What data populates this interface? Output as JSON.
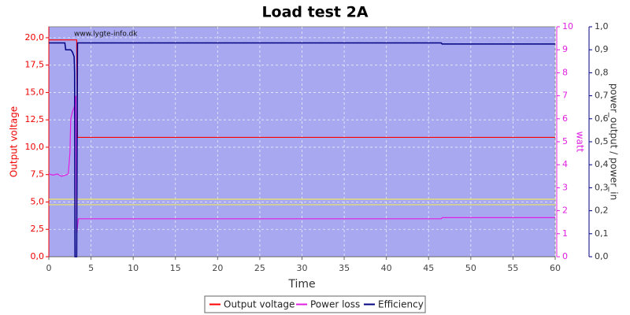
{
  "chart_data": {
    "type": "line",
    "title": "Load test 2A",
    "xlabel": "Time",
    "ylabel": "Output voltage",
    "y2label": "watt",
    "y3label": "power_output / power_in",
    "watermark": "www.lygte-info.dk",
    "xlim": [
      0,
      60
    ],
    "xticks": [
      0,
      5,
      10,
      15,
      20,
      25,
      30,
      35,
      40,
      45,
      50,
      55,
      60
    ],
    "ylim": [
      0,
      21
    ],
    "yticks": [
      {
        "value": 0,
        "label": "0,0"
      },
      {
        "value": 2.5,
        "label": "2,5"
      },
      {
        "value": 5,
        "label": "5,0"
      },
      {
        "value": 7.5,
        "label": "7,5"
      },
      {
        "value": 10,
        "label": "10,0"
      },
      {
        "value": 12.5,
        "label": "12,5"
      },
      {
        "value": 15,
        "label": "15,0"
      },
      {
        "value": 17.5,
        "label": "17,5"
      },
      {
        "value": 20,
        "label": "20,0"
      }
    ],
    "y2lim": [
      0,
      10
    ],
    "y2ticks": [
      0,
      1,
      2,
      3,
      4,
      5,
      6,
      7,
      8,
      9,
      10
    ],
    "y3lim": [
      0,
      1
    ],
    "y3ticks": [
      {
        "value": 0,
        "label": "0,0"
      },
      {
        "value": 0.1,
        "label": "0,1"
      },
      {
        "value": 0.2,
        "label": "0,2"
      },
      {
        "value": 0.3,
        "label": "0,3"
      },
      {
        "value": 0.4,
        "label": "0,4"
      },
      {
        "value": 0.5,
        "label": "0,5"
      },
      {
        "value": 0.6,
        "label": "0,6"
      },
      {
        "value": 0.7,
        "label": "0,7"
      },
      {
        "value": 0.8,
        "label": "0,8"
      },
      {
        "value": 0.9,
        "label": "0,9"
      },
      {
        "value": 1,
        "label": "1,0"
      }
    ],
    "grid": true,
    "hlines": {
      "color": "#e8e860",
      "values": [
        5.25,
        4.75
      ]
    },
    "series": [
      {
        "name": "Output voltage",
        "color": "#ff0000",
        "axis": "y",
        "x": [
          0,
          3.3,
          3.4,
          60
        ],
        "values": [
          19.8,
          19.8,
          10.9,
          10.9
        ]
      },
      {
        "name": "Power loss",
        "color": "#e020e0",
        "axis": "y2",
        "x": [
          0,
          0.5,
          1.0,
          1.5,
          2.0,
          2.3,
          2.5,
          2.6,
          2.8,
          3.0,
          3.1,
          3.2,
          3.3,
          3.5,
          46.5,
          46.6,
          60
        ],
        "values": [
          3.6,
          3.55,
          3.6,
          3.5,
          3.55,
          3.6,
          4.5,
          6.0,
          6.3,
          6.5,
          6.7,
          7.0,
          1.0,
          1.65,
          1.65,
          1.7,
          1.7
        ]
      },
      {
        "name": "Efficiency",
        "color": "#000080",
        "axis": "y3",
        "x": [
          0,
          1.9,
          2.0,
          2.6,
          2.8,
          3.0,
          3.05,
          3.1,
          3.3,
          3.4,
          46.5,
          46.6,
          60
        ],
        "values": [
          0.93,
          0.93,
          0.9,
          0.9,
          0.89,
          0.87,
          0.8,
          0,
          0,
          0.93,
          0.93,
          0.925,
          0.925
        ]
      }
    ]
  }
}
